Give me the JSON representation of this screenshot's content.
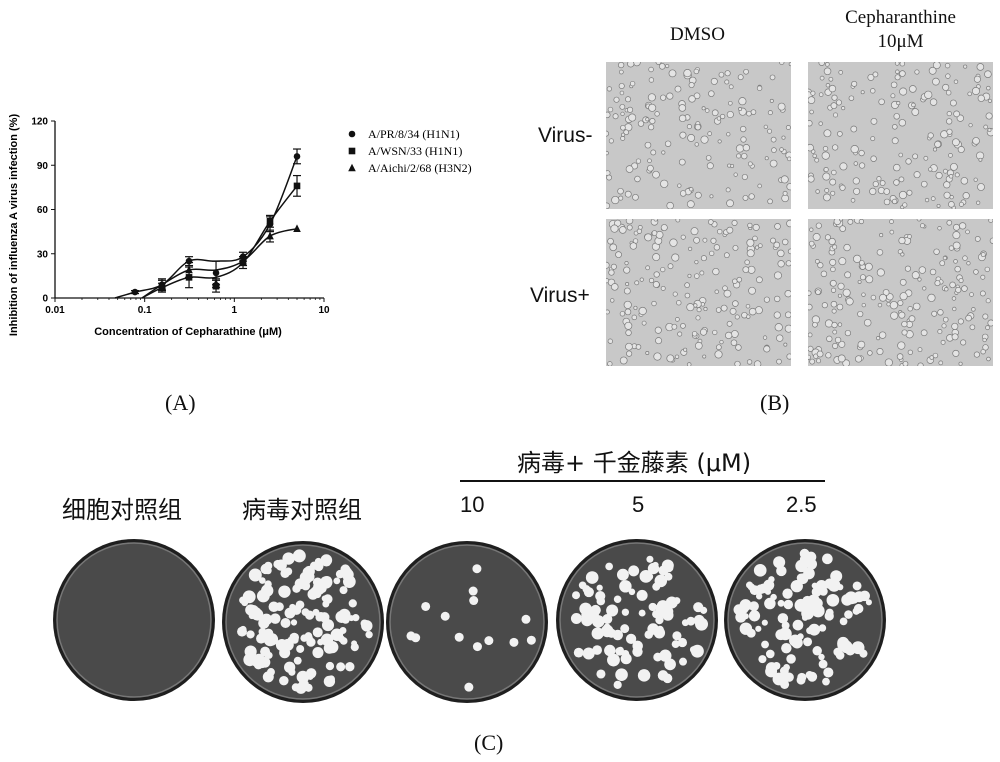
{
  "chart_data": {
    "type": "scatter",
    "ylabel": "Inhibition of influenza A virus infection (%)",
    "xlabel": "Concentration of Cepharathine (μM)",
    "xscale": "log",
    "xlim": [
      0.01,
      10
    ],
    "ylim": [
      0,
      120
    ],
    "x_ticks": [
      "0.01",
      "0.1",
      "1",
      "10"
    ],
    "y_ticks": [
      "0",
      "30",
      "60",
      "90",
      "120"
    ],
    "legend_position": "right",
    "series": [
      {
        "name": "A/PR/8/34 (H1N1)",
        "marker": "circle",
        "x": [
          0.078,
          0.156,
          0.3125,
          0.625,
          1.25,
          2.5,
          5
        ],
        "y": [
          4,
          9,
          25,
          17,
          28,
          50,
          96
        ],
        "err": [
          1,
          4,
          3,
          8,
          3,
          5,
          5
        ]
      },
      {
        "name": "A/WSN/33 (H1N1)",
        "marker": "square",
        "x": [
          0.156,
          0.3125,
          0.625,
          1.25,
          2.5,
          5
        ],
        "y": [
          7,
          14,
          8,
          24,
          52,
          76
        ],
        "err": [
          3,
          7,
          4,
          4,
          4,
          7
        ]
      },
      {
        "name": "A/Aichi/2/68 (H3N2)",
        "marker": "triangle",
        "x": [
          0.156,
          0.3125,
          0.625,
          1.25,
          2.5,
          5
        ],
        "y": [
          9,
          19,
          10,
          25,
          42,
          47
        ],
        "err": [
          3,
          5,
          3,
          3,
          4,
          0
        ]
      }
    ]
  },
  "panels": {
    "a_label": "(A)",
    "b_label": "(B)",
    "c_label": "(C)"
  },
  "micrographs": {
    "col1": "DMSO",
    "col2_line1": "Cepharanthine",
    "col2_line2": "10μM",
    "row1": "Virus-",
    "row2": "Virus+"
  },
  "plaques": {
    "header": "病毒+ 千金藤素 (μM)",
    "cell_control": "细胞对照组",
    "virus_control": "病毒对照组",
    "conc1": "10",
    "conc2": "5",
    "conc3": "2.5"
  },
  "colors": {
    "plate_bg": "#4a4a4a",
    "plate_rim": "#1f1f1f",
    "plaque": "#f2f2f2",
    "micro_bg": "#c8c8c8"
  }
}
